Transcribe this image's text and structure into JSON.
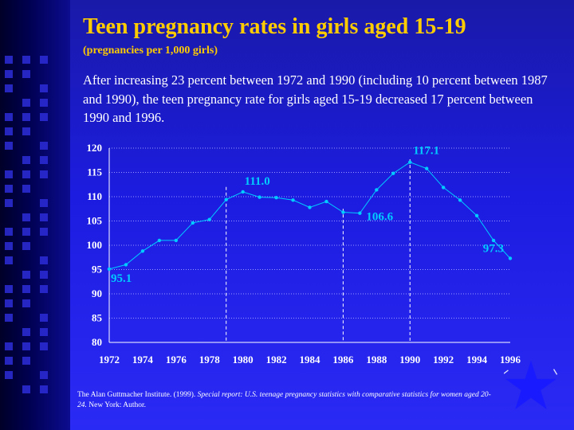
{
  "slide": {
    "title": "Teen pregnancy rates in girls aged 15-19",
    "subtitle": "(pregnancies per 1,000 girls)",
    "description": "After increasing 23 percent between 1972 and 1990 (including 10 percent between 1987 and 1990), the teen pregnancy rate for girls aged 15-19 decreased 17 percent between 1990 and 1996.",
    "source_prefix": "The Alan Guttmacher Institute. (1999). ",
    "source_title": "Special report: U.S. teenage pregnancy statistics with comparative statistics for women aged 20-24.",
    "source_suffix": " New York: Author."
  },
  "colors": {
    "title": "#ffcc00",
    "line": "#00ccff",
    "data_label": "#00ccff",
    "grid": "#9999ff",
    "star": "#1a1aff"
  },
  "chart_data": {
    "type": "line",
    "x": [
      1972,
      1973,
      1974,
      1975,
      1976,
      1977,
      1978,
      1979,
      1980,
      1981,
      1982,
      1983,
      1984,
      1985,
      1986,
      1987,
      1988,
      1989,
      1990,
      1991,
      1992,
      1993,
      1994,
      1995,
      1996
    ],
    "series": [
      {
        "values": [
          95.1,
          96.0,
          98.8,
          101.0,
          101.0,
          104.6,
          105.3,
          109.4,
          111.0,
          109.9,
          109.8,
          109.3,
          107.8,
          109.0,
          106.8,
          106.6,
          111.4,
          114.8,
          117.1,
          115.8,
          111.9,
          109.3,
          106.1,
          101.0,
          97.3
        ]
      }
    ],
    "x_tick_labels": [
      "1972",
      "1974",
      "1976",
      "1978",
      "1980",
      "1982",
      "1984",
      "1986",
      "1988",
      "1990",
      "1992",
      "1994",
      "1996"
    ],
    "y_tick_labels": [
      "80",
      "85",
      "90",
      "95",
      "100",
      "105",
      "110",
      "115",
      "120"
    ],
    "ylim": [
      80,
      120
    ],
    "grid": "horizontal dotted",
    "reference_lines_x": [
      1979,
      1986,
      1990
    ],
    "annotations": [
      {
        "x": 1972,
        "y": 95.1,
        "text": "95.1"
      },
      {
        "x": 1980,
        "y": 111.0,
        "text": "111.0"
      },
      {
        "x": 1987,
        "y": 106.6,
        "text": "106.6"
      },
      {
        "x": 1990,
        "y": 117.1,
        "text": "117.1"
      },
      {
        "x": 1996,
        "y": 97.3,
        "text": "97.3"
      }
    ]
  }
}
